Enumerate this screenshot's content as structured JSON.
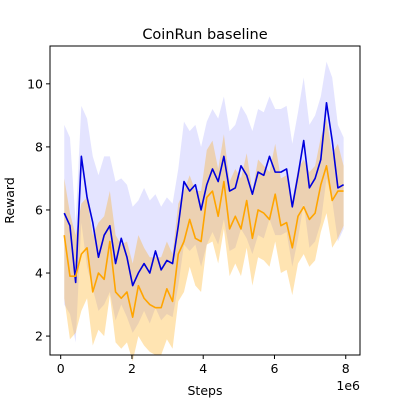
{
  "chart_data": {
    "type": "line",
    "title": "CoinRun baseline",
    "xlabel": "Steps",
    "ylabel": "Reward",
    "x_offset_label": "1e6",
    "xlim": [
      -0.3,
      8.4
    ],
    "ylim": [
      1.4,
      11.2
    ],
    "x_ticks": [
      0,
      2,
      4,
      6,
      8
    ],
    "x_tick_labels": [
      "0",
      "2",
      "4",
      "6",
      "8"
    ],
    "y_ticks": [
      2,
      4,
      6,
      8,
      10
    ],
    "y_tick_labels": [
      "2",
      "4",
      "6",
      "8",
      "10"
    ],
    "grid": false,
    "legend": "none",
    "x": [
      0.1,
      0.26,
      0.42,
      0.58,
      0.74,
      0.9,
      1.06,
      1.22,
      1.38,
      1.54,
      1.7,
      1.86,
      2.02,
      2.18,
      2.34,
      2.5,
      2.66,
      2.82,
      2.98,
      3.14,
      3.3,
      3.46,
      3.62,
      3.78,
      3.94,
      4.1,
      4.26,
      4.42,
      4.58,
      4.74,
      4.9,
      5.06,
      5.22,
      5.38,
      5.54,
      5.7,
      5.86,
      6.02,
      6.18,
      6.34,
      6.5,
      6.66,
      6.82,
      6.98,
      7.14,
      7.3,
      7.46,
      7.62,
      7.78,
      7.94
    ],
    "series": [
      {
        "color": "#0000dd",
        "band_color": "#5555ff",
        "values": [
          5.9,
          5.5,
          3.7,
          7.7,
          6.4,
          5.6,
          4.5,
          5.2,
          5.5,
          4.3,
          5.1,
          4.5,
          3.6,
          4.0,
          4.3,
          4.0,
          4.7,
          4.1,
          4.4,
          4.3,
          5.5,
          6.9,
          6.6,
          6.8,
          6.0,
          6.8,
          7.3,
          6.9,
          7.7,
          6.6,
          6.7,
          7.4,
          7.1,
          6.5,
          7.2,
          7.1,
          7.7,
          7.2,
          7.2,
          7.3,
          6.1,
          7.1,
          8.2,
          6.7,
          7.0,
          7.6,
          9.4,
          8.2,
          6.7,
          6.8
        ],
        "upper": [
          8.7,
          8.3,
          5.6,
          9.3,
          8.9,
          7.7,
          7.1,
          7.7,
          7.7,
          6.9,
          7.0,
          6.8,
          6.1,
          6.3,
          6.7,
          6.3,
          6.5,
          6.1,
          6.4,
          6.2,
          7.3,
          8.8,
          8.5,
          8.7,
          8.0,
          8.8,
          9.2,
          8.9,
          9.6,
          8.5,
          8.7,
          9.3,
          9.0,
          8.5,
          9.2,
          9.1,
          9.6,
          9.2,
          9.2,
          9.3,
          8.1,
          9.1,
          10.2,
          8.7,
          9.0,
          9.6,
          10.7,
          10.2,
          8.7,
          8.3
        ],
        "lower": [
          3.0,
          2.7,
          1.8,
          5.6,
          4.2,
          3.5,
          2.8,
          3.0,
          3.4,
          2.5,
          3.0,
          2.6,
          2.1,
          2.4,
          2.8,
          2.4,
          2.9,
          2.5,
          2.7,
          2.6,
          3.6,
          4.9,
          4.7,
          4.9,
          4.2,
          4.9,
          5.3,
          4.9,
          5.7,
          4.7,
          4.8,
          5.4,
          5.1,
          4.6,
          5.2,
          5.1,
          5.7,
          5.2,
          5.2,
          5.3,
          4.2,
          5.1,
          6.2,
          4.8,
          5.0,
          5.6,
          7.0,
          6.3,
          5.0,
          5.4
        ]
      },
      {
        "color": "#ffa500",
        "band_color": "#ffa500",
        "values": [
          5.2,
          3.9,
          3.9,
          4.6,
          4.8,
          3.4,
          4.0,
          3.8,
          5.0,
          3.4,
          3.2,
          3.4,
          2.6,
          3.6,
          3.2,
          3.0,
          2.9,
          2.9,
          3.5,
          3.1,
          4.6,
          5.0,
          5.7,
          5.1,
          5.0,
          6.4,
          6.6,
          5.8,
          6.9,
          5.4,
          5.8,
          5.4,
          6.3,
          5.1,
          6.0,
          5.9,
          5.7,
          6.5,
          5.5,
          5.6,
          4.8,
          5.8,
          6.1,
          5.7,
          5.9,
          6.8,
          7.4,
          6.3,
          6.6,
          6.6
        ],
        "upper": [
          7.0,
          5.9,
          5.2,
          6.2,
          6.4,
          5.2,
          5.6,
          5.8,
          6.6,
          5.2,
          4.9,
          5.0,
          4.3,
          5.2,
          4.8,
          4.5,
          4.5,
          4.5,
          5.0,
          4.6,
          6.2,
          6.6,
          7.1,
          6.6,
          6.6,
          7.9,
          8.2,
          7.3,
          8.4,
          6.9,
          7.3,
          7.0,
          7.8,
          6.6,
          7.6,
          7.4,
          7.2,
          8.1,
          7.0,
          7.1,
          6.3,
          7.3,
          7.6,
          7.2,
          7.4,
          8.3,
          8.9,
          7.8,
          8.1,
          7.4
        ],
        "lower": [
          3.2,
          1.9,
          2.1,
          2.8,
          3.2,
          1.7,
          2.2,
          2.0,
          3.3,
          1.8,
          1.6,
          1.8,
          1.2,
          2.0,
          1.7,
          1.5,
          1.4,
          1.4,
          1.9,
          1.6,
          3.1,
          3.4,
          4.2,
          3.6,
          3.4,
          4.9,
          5.0,
          4.3,
          5.4,
          3.9,
          4.3,
          3.9,
          4.8,
          3.6,
          4.5,
          4.4,
          4.2,
          5.0,
          4.0,
          4.1,
          3.3,
          4.3,
          4.6,
          4.2,
          4.4,
          5.3,
          5.9,
          4.8,
          5.1,
          5.5
        ]
      }
    ]
  }
}
